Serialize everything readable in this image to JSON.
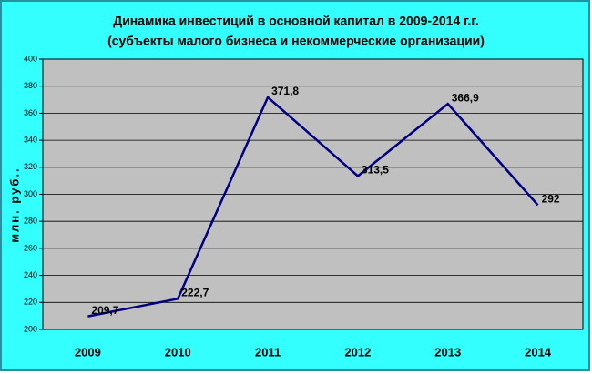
{
  "chart_data": {
    "type": "line",
    "title": "Динамика инвестиций в основной капитал в 2009-2014 г.г.",
    "subtitle": "(субъекты малого бизнеса и некоммерческие организации)",
    "y_label": "млн. руб..",
    "categories": [
      "2009",
      "2010",
      "2011",
      "2012",
      "2013",
      "2014"
    ],
    "values": [
      209.7,
      222.7,
      371.8,
      313.5,
      366.9,
      292
    ],
    "value_labels": [
      "209,7",
      "222,7",
      "371,8",
      "313,5",
      "366,9",
      "292"
    ],
    "color": "#000080",
    "ylim": [
      200,
      400
    ],
    "yticks": [
      200,
      220,
      240,
      260,
      280,
      300,
      320,
      340,
      360,
      380,
      400
    ],
    "grid": true
  }
}
